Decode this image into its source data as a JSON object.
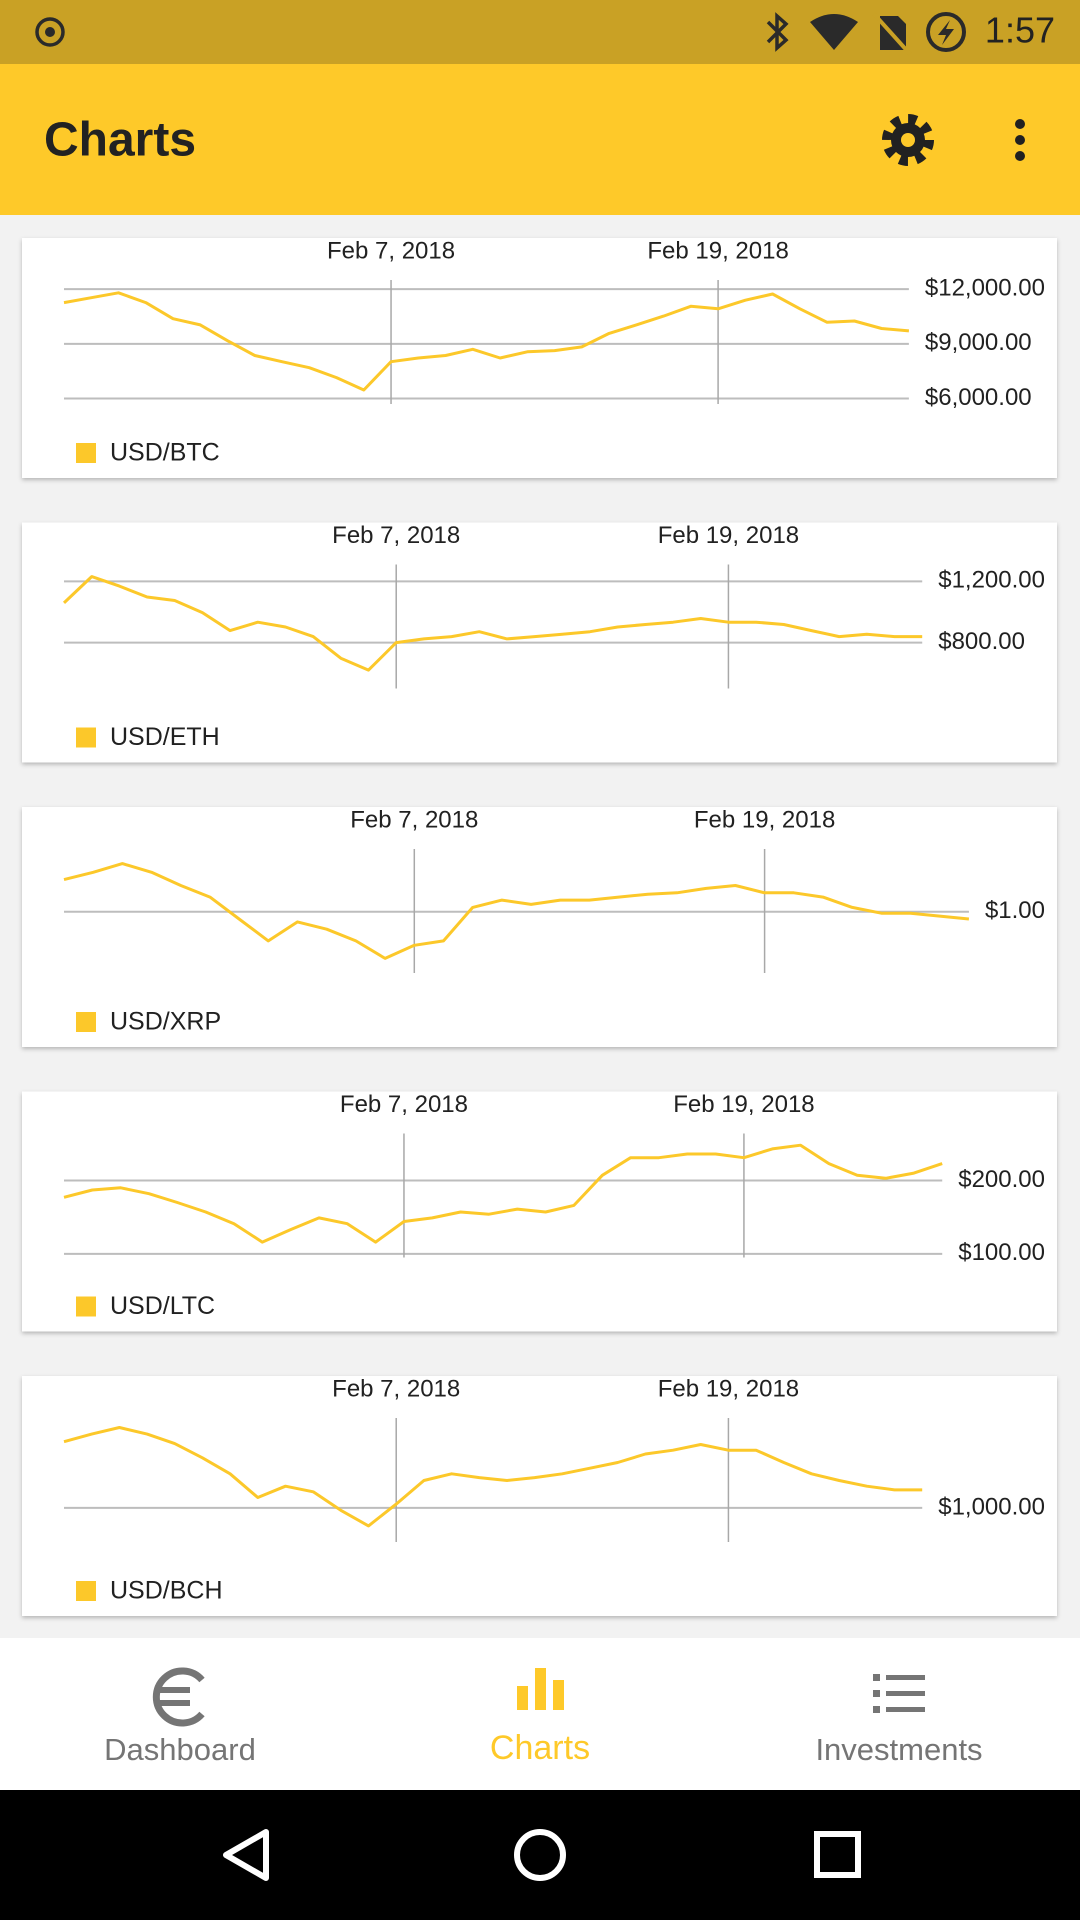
{
  "status_bar": {
    "time": "1:57"
  },
  "app_bar": {
    "title": "Charts"
  },
  "bottom_nav": {
    "items": [
      {
        "label": "Dashboard"
      },
      {
        "label": "Charts"
      },
      {
        "label": "Investments"
      }
    ]
  },
  "chart_data": [
    {
      "type": "line",
      "x": [
        "2018-01-26",
        "2018-01-27",
        "2018-01-28",
        "2018-01-29",
        "2018-01-30",
        "2018-01-31",
        "2018-02-01",
        "2018-02-02",
        "2018-02-03",
        "2018-02-04",
        "2018-02-05",
        "2018-02-06",
        "2018-02-07",
        "2018-02-08",
        "2018-02-09",
        "2018-02-10",
        "2018-02-11",
        "2018-02-12",
        "2018-02-13",
        "2018-02-14",
        "2018-02-15",
        "2018-02-16",
        "2018-02-17",
        "2018-02-18",
        "2018-02-19",
        "2018-02-20",
        "2018-02-21",
        "2018-02-22",
        "2018-02-23",
        "2018-02-24",
        "2018-02-25",
        "2018-02-26"
      ],
      "series": [
        {
          "name": "USD/BTC",
          "color": "#fcc82a",
          "values": [
            11260,
            11530,
            11800,
            11260,
            10380,
            10040,
            9170,
            8360,
            8020,
            7690,
            7150,
            6470,
            8020,
            8220,
            8360,
            8700,
            8220,
            8560,
            8630,
            8830,
            9570,
            10040,
            10520,
            11060,
            10920,
            11390,
            11730,
            10920,
            10180,
            10250,
            9840,
            9710
          ]
        }
      ],
      "xlim": [
        "2018-01-26",
        "2018-02-26"
      ],
      "xticks": [
        {
          "value": "2018-02-07",
          "label": "Feb 7, 2018"
        },
        {
          "value": "2018-02-19",
          "label": "Feb 19, 2018"
        }
      ],
      "ylim": [
        5700,
        12500
      ],
      "yticks": [
        {
          "value": 6000,
          "label": "$6,000.00"
        },
        {
          "value": 9000,
          "label": "$9,000.00"
        },
        {
          "value": 12000,
          "label": "$12,000.00"
        }
      ],
      "grid": true
    },
    {
      "type": "line",
      "x": [
        "2018-01-26",
        "2018-01-27",
        "2018-01-28",
        "2018-01-29",
        "2018-01-30",
        "2018-01-31",
        "2018-02-01",
        "2018-02-02",
        "2018-02-03",
        "2018-02-04",
        "2018-02-05",
        "2018-02-06",
        "2018-02-07",
        "2018-02-08",
        "2018-02-09",
        "2018-02-10",
        "2018-02-11",
        "2018-02-12",
        "2018-02-13",
        "2018-02-14",
        "2018-02-15",
        "2018-02-16",
        "2018-02-17",
        "2018-02-18",
        "2018-02-19",
        "2018-02-20",
        "2018-02-21",
        "2018-02-22",
        "2018-02-23",
        "2018-02-24",
        "2018-02-25",
        "2018-02-26"
      ],
      "series": [
        {
          "name": "USD/ETH",
          "color": "#fcc82a",
          "values": [
            1059,
            1231,
            1169,
            1098,
            1075,
            996,
            878,
            933,
            902,
            839,
            698,
            620,
            800,
            824,
            839,
            871,
            824,
            839,
            855,
            871,
            902,
            918,
            933,
            957,
            933,
            933,
            918,
            878,
            839,
            855,
            839,
            839
          ]
        }
      ],
      "xlim": [
        "2018-01-26",
        "2018-02-26"
      ],
      "xticks": [
        {
          "value": "2018-02-07",
          "label": "Feb 7, 2018"
        },
        {
          "value": "2018-02-19",
          "label": "Feb 19, 2018"
        }
      ],
      "ylim": [
        500,
        1310
      ],
      "yticks": [
        {
          "value": 800,
          "label": "$800.00"
        },
        {
          "value": 1200,
          "label": "$1,200.00"
        }
      ],
      "grid": true
    },
    {
      "type": "line",
      "x": [
        "2018-01-26",
        "2018-01-27",
        "2018-01-28",
        "2018-01-29",
        "2018-01-30",
        "2018-01-31",
        "2018-02-01",
        "2018-02-02",
        "2018-02-03",
        "2018-02-04",
        "2018-02-05",
        "2018-02-06",
        "2018-02-07",
        "2018-02-08",
        "2018-02-09",
        "2018-02-10",
        "2018-02-11",
        "2018-02-12",
        "2018-02-13",
        "2018-02-14",
        "2018-02-15",
        "2018-02-16",
        "2018-02-17",
        "2018-02-18",
        "2018-02-19",
        "2018-02-20",
        "2018-02-21",
        "2018-02-22",
        "2018-02-23",
        "2018-02-24",
        "2018-02-25",
        "2018-02-26"
      ],
      "series": [
        {
          "name": "USD/XRP",
          "color": "#fcc82a",
          "values": [
            1.22,
            1.27,
            1.33,
            1.27,
            1.18,
            1.1,
            0.95,
            0.8,
            0.93,
            0.88,
            0.8,
            0.68,
            0.77,
            0.8,
            1.03,
            1.08,
            1.05,
            1.08,
            1.08,
            1.1,
            1.12,
            1.13,
            1.16,
            1.18,
            1.13,
            1.13,
            1.1,
            1.03,
            0.99,
            0.99,
            0.97,
            0.95
          ]
        }
      ],
      "xlim": [
        "2018-01-26",
        "2018-02-26"
      ],
      "xticks": [
        {
          "value": "2018-02-07",
          "label": "Feb 7, 2018"
        },
        {
          "value": "2018-02-19",
          "label": "Feb 19, 2018"
        }
      ],
      "ylim": [
        0.58,
        1.43
      ],
      "yticks": [
        {
          "value": 1,
          "label": "$1.00"
        }
      ],
      "grid": true
    },
    {
      "type": "line",
      "x": [
        "2018-01-26",
        "2018-01-27",
        "2018-01-28",
        "2018-01-29",
        "2018-01-30",
        "2018-01-31",
        "2018-02-01",
        "2018-02-02",
        "2018-02-03",
        "2018-02-04",
        "2018-02-05",
        "2018-02-06",
        "2018-02-07",
        "2018-02-08",
        "2018-02-09",
        "2018-02-10",
        "2018-02-11",
        "2018-02-12",
        "2018-02-13",
        "2018-02-14",
        "2018-02-15",
        "2018-02-16",
        "2018-02-17",
        "2018-02-18",
        "2018-02-19",
        "2018-02-20",
        "2018-02-21",
        "2018-02-22",
        "2018-02-23",
        "2018-02-24",
        "2018-02-25",
        "2018-02-26"
      ],
      "series": [
        {
          "name": "USD/LTC",
          "color": "#fcc82a",
          "values": [
            177,
            187,
            190,
            182,
            170,
            157,
            141,
            116,
            133,
            149,
            141,
            116,
            144,
            149,
            157,
            154,
            161,
            157,
            166,
            207,
            231,
            231,
            236,
            236,
            231,
            243,
            248,
            223,
            207,
            203,
            210,
            223
          ]
        }
      ],
      "xlim": [
        "2018-01-26",
        "2018-02-26"
      ],
      "xticks": [
        {
          "value": "2018-02-07",
          "label": "Feb 7, 2018"
        },
        {
          "value": "2018-02-19",
          "label": "Feb 19, 2018"
        }
      ],
      "ylim": [
        95,
        264
      ],
      "yticks": [
        {
          "value": 100,
          "label": "$100.00"
        },
        {
          "value": 200,
          "label": "$200.00"
        }
      ],
      "grid": true
    },
    {
      "type": "line",
      "x": [
        "2018-01-26",
        "2018-01-27",
        "2018-01-28",
        "2018-01-29",
        "2018-01-30",
        "2018-01-31",
        "2018-02-01",
        "2018-02-02",
        "2018-02-03",
        "2018-02-04",
        "2018-02-05",
        "2018-02-06",
        "2018-02-07",
        "2018-02-08",
        "2018-02-09",
        "2018-02-10",
        "2018-02-11",
        "2018-02-12",
        "2018-02-13",
        "2018-02-14",
        "2018-02-15",
        "2018-02-16",
        "2018-02-17",
        "2018-02-18",
        "2018-02-19",
        "2018-02-20",
        "2018-02-21",
        "2018-02-22",
        "2018-02-23",
        "2018-02-24",
        "2018-02-25",
        "2018-02-26"
      ],
      "series": [
        {
          "name": "USD/BCH",
          "color": "#fcc82a",
          "values": [
            1700,
            1780,
            1850,
            1780,
            1680,
            1530,
            1360,
            1110,
            1230,
            1170,
            975,
            810,
            1040,
            1290,
            1360,
            1320,
            1290,
            1320,
            1360,
            1420,
            1480,
            1570,
            1610,
            1670,
            1610,
            1610,
            1480,
            1360,
            1290,
            1230,
            1190,
            1190
          ]
        }
      ],
      "xlim": [
        "2018-01-26",
        "2018-02-26"
      ],
      "xticks": [
        {
          "value": "2018-02-07",
          "label": "Feb 7, 2018"
        },
        {
          "value": "2018-02-19",
          "label": "Feb 19, 2018"
        }
      ],
      "ylim": [
        640,
        1950
      ],
      "yticks": [
        {
          "value": 1000,
          "label": "$1,000.00"
        }
      ],
      "grid": true
    }
  ]
}
